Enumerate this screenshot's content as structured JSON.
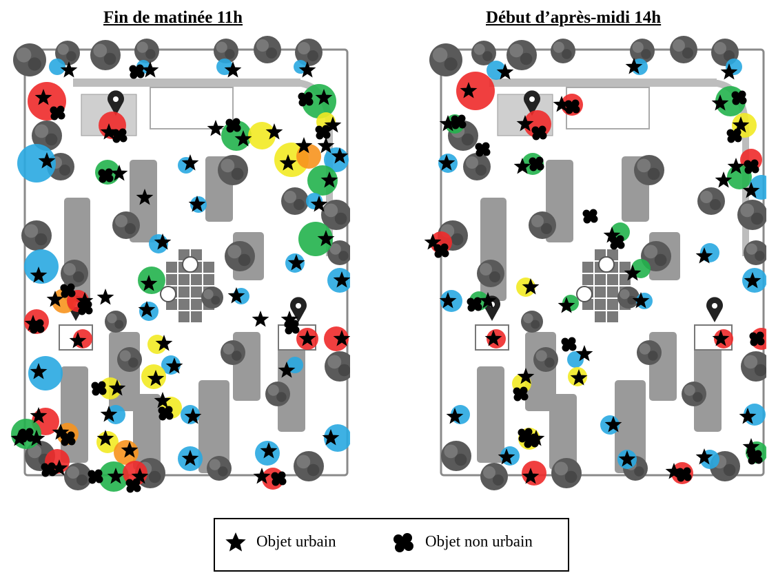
{
  "panels": [
    {
      "title": "Fin de matinée 11h"
    },
    {
      "title": "Début d’après-midi 14h"
    }
  ],
  "legend": {
    "items": [
      {
        "symbol": "star-icon",
        "label": "Objet urbain"
      },
      {
        "symbol": "cloud-blob-icon",
        "label": "Objet non urbain"
      }
    ]
  },
  "colors": {
    "blue": "#29a9e1",
    "red": "#ee2a2a",
    "green": "#22b24c",
    "yellow": "#f2ea24",
    "orange": "#f7931e",
    "tree": "#5a5a5a",
    "planter": "#9a9a9a",
    "path": "#bdbdbd",
    "border": "#8a8a8a"
  }
}
